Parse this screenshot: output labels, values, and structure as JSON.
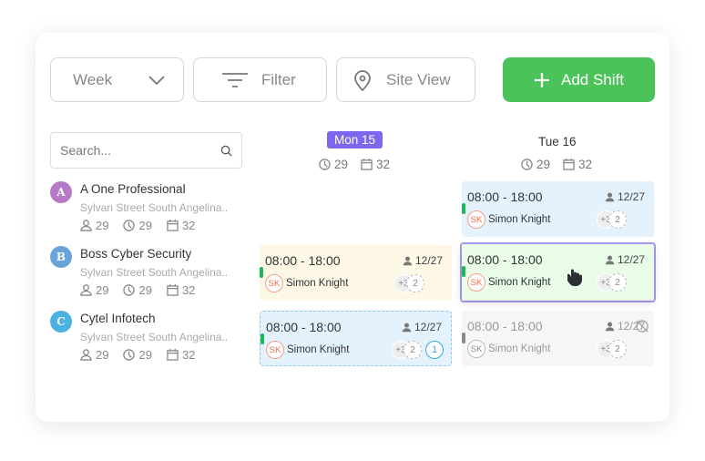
{
  "toolbar": {
    "week_label": "Week",
    "filter_label": "Filter",
    "site_view_label": "Site View",
    "add_shift_label": "Add Shift"
  },
  "search": {
    "placeholder": "Search..."
  },
  "companies": [
    {
      "initial": "A",
      "name": "A One Professional",
      "address": "Sylvan Street South Angelina..",
      "staff": "29",
      "hours": "29",
      "days": "32",
      "color": "#b57ac6"
    },
    {
      "initial": "B",
      "name": "Boss Cyber Security",
      "address": "Sylvan Street South Angelina..",
      "staff": "29",
      "hours": "29",
      "days": "32",
      "color": "#6aa3d9"
    },
    {
      "initial": "C",
      "name": "Cytel Infotech",
      "address": "Sylvan Street South Angelina..",
      "staff": "29",
      "hours": "29",
      "days": "32",
      "color": "#4bb1e0"
    }
  ],
  "days": [
    {
      "label": "Mon 15",
      "hours": "29",
      "days": "32",
      "selected": true
    },
    {
      "label": "Tue 16",
      "hours": "29",
      "days": "32",
      "selected": false
    }
  ],
  "shift": {
    "time": "08:00 - 18:00",
    "count": "12/27",
    "employee_initials": "SK",
    "employee": "Simon Knight",
    "more": "+3",
    "open": "2",
    "unassigned": "1"
  },
  "colors": {
    "accent": "#7b68ee",
    "add": "#4cc25a",
    "blue_shift": "#e3f2fd",
    "yellow_shift": "#fdf7e6",
    "green_shift": "#e8fce8",
    "grey_shift": "#f5f6f8"
  }
}
